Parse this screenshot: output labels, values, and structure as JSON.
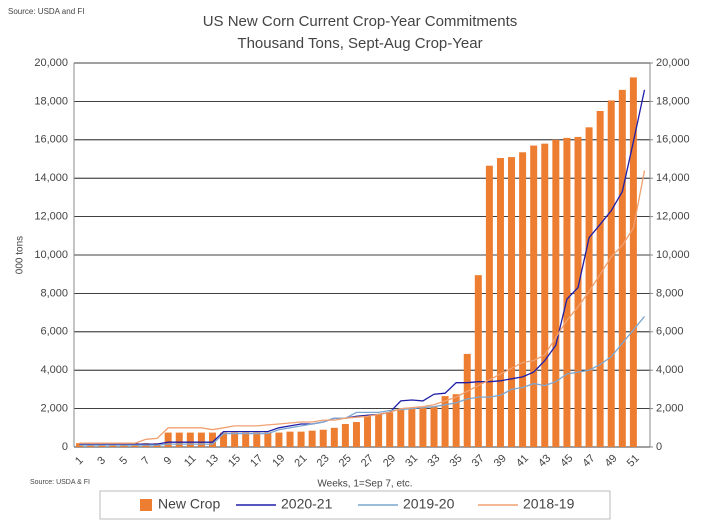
{
  "chart_data": {
    "type": "bar",
    "title": "US New Corn Current Crop-Year Commitments",
    "subtitle": "Thousand Tons, Sept-Aug Crop-Year",
    "source_top": "Source: USDA and  FI",
    "source_bottom": "Source: USDA & FI",
    "y_label": "000 tons",
    "x_label": "Weeks, 1=Sep 7, etc.",
    "categories": [
      1,
      null,
      3,
      null,
      5,
      null,
      7,
      null,
      9,
      null,
      11,
      null,
      13,
      null,
      15,
      null,
      17,
      null,
      19,
      null,
      21,
      null,
      23,
      null,
      25,
      null,
      27,
      null,
      29,
      null,
      31,
      null,
      33,
      null,
      35,
      null,
      37,
      null,
      39,
      null,
      41,
      null,
      43,
      null,
      45,
      null,
      47,
      null,
      49,
      null,
      51,
      null
    ],
    "series": [
      {
        "name": "New Crop",
        "type": "bar",
        "color": "#ed7d31",
        "values": [
          200,
          200,
          200,
          200,
          200,
          200,
          200,
          200,
          750,
          750,
          750,
          750,
          750,
          750,
          750,
          750,
          750,
          750,
          750,
          800,
          800,
          850,
          900,
          1000,
          1200,
          1300,
          1600,
          1700,
          1800,
          1950,
          2000,
          2050,
          2100,
          2650,
          2750,
          4850,
          8950,
          14650,
          15050,
          15100,
          15350,
          15700,
          15800,
          16000,
          16100,
          16150,
          16650,
          17500,
          18050,
          18600,
          19250,
          null
        ]
      },
      {
        "name": "2020-21",
        "type": "line",
        "color": "#1f1fa8",
        "values": [
          150,
          150,
          150,
          150,
          150,
          150,
          150,
          150,
          250,
          250,
          250,
          250,
          250,
          800,
          800,
          800,
          800,
          800,
          1000,
          1100,
          1200,
          1200,
          1300,
          1500,
          1500,
          1600,
          1650,
          1700,
          1800,
          2400,
          2450,
          2400,
          2750,
          2800,
          3350,
          3350,
          3400,
          3400,
          3450,
          3550,
          3650,
          3900,
          4500,
          5300,
          7700,
          8300,
          10900,
          11600,
          12300,
          13300,
          15900,
          18600
        ]
      },
      {
        "name": "2019-20",
        "type": "line",
        "color": "#7fa7cf",
        "values": [
          100,
          100,
          100,
          100,
          100,
          100,
          100,
          100,
          150,
          150,
          150,
          150,
          150,
          700,
          700,
          700,
          700,
          700,
          900,
          1000,
          1100,
          1200,
          1300,
          1500,
          1500,
          1800,
          1800,
          1800,
          1900,
          1950,
          2000,
          2050,
          2100,
          2200,
          2300,
          2500,
          2600,
          2600,
          2700,
          3000,
          3100,
          3300,
          3200,
          3400,
          3800,
          3900,
          4000,
          4300,
          4700,
          5400,
          6100,
          6800
        ]
      },
      {
        "name": "2018-19",
        "type": "line",
        "color": "#f0a070",
        "values": [
          200,
          200,
          200,
          200,
          200,
          200,
          400,
          450,
          1000,
          1000,
          1000,
          1000,
          900,
          1000,
          1100,
          1100,
          1100,
          1150,
          1200,
          1250,
          1300,
          1300,
          1400,
          1400,
          1500,
          1550,
          1600,
          1700,
          1800,
          2000,
          2050,
          2100,
          2200,
          2400,
          2600,
          2900,
          3200,
          3500,
          3800,
          4100,
          4400,
          4500,
          4800,
          5700,
          6600,
          7300,
          8100,
          9000,
          9900,
          10500,
          11400,
          14400
        ]
      }
    ],
    "ylim": [
      0,
      20000
    ],
    "yticks": [
      0,
      {
        "value": 2000,
        "label": "2,000"
      },
      {
        "value": 4000,
        "label": "4,000"
      },
      {
        "value": 6000,
        "label": "6,000"
      },
      {
        "value": 8000,
        "label": "8,000"
      },
      {
        "value": 10000,
        "label": "10,000"
      },
      {
        "value": 12000,
        "label": "12,000"
      },
      {
        "value": 14000,
        "label": "14,000"
      },
      {
        "value": 16000,
        "label": "16,000"
      },
      {
        "value": 18000,
        "label": "18,000"
      },
      {
        "value": 20000,
        "label": "20,000"
      }
    ],
    "y2lim": [
      0,
      20000
    ],
    "y2ticks": [
      0,
      {
        "value": 2000,
        "label": "2,000"
      },
      {
        "value": 4000,
        "label": "4,000"
      },
      {
        "value": 6000,
        "label": "6,000"
      },
      {
        "value": 8000,
        "label": "8,000"
      },
      {
        "value": 10000,
        "label": "10,000"
      },
      {
        "value": 12000,
        "label": "12,000"
      },
      {
        "value": 14000,
        "label": "14,000"
      },
      {
        "value": 16000,
        "label": "16,000"
      },
      {
        "value": 18000,
        "label": "18,000"
      },
      {
        "value": 20000,
        "label": "20,000"
      }
    ],
    "grid": true,
    "legend": "bottom"
  }
}
